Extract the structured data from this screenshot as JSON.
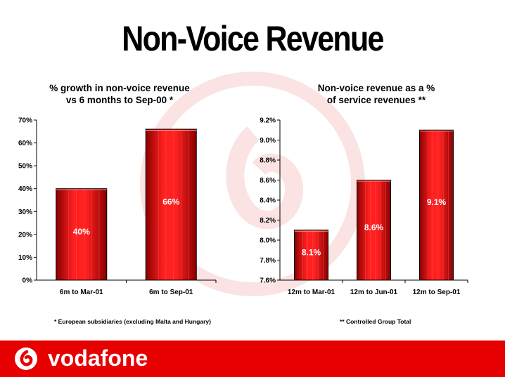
{
  "page": {
    "title": "Non-Voice Revenue",
    "brand": "vodafone",
    "colors": {
      "accent": "#e60000",
      "bar_dark": "#8a0000",
      "bar_light": "#ff2020"
    }
  },
  "chart_data": [
    {
      "type": "bar",
      "title_lines": [
        "% growth in non-voice revenue",
        "vs 6 months to Sep-00 *"
      ],
      "categories": [
        "6m to Mar-01",
        "6m to Sep-01"
      ],
      "values": [
        40,
        66
      ],
      "data_labels": [
        "40%",
        "66%"
      ],
      "ylim": [
        0,
        70
      ],
      "yticks": [
        "0%",
        "10%",
        "20%",
        "30%",
        "40%",
        "50%",
        "60%",
        "70%"
      ],
      "footnote": "* European subsidiaries (excluding Malta and Hungary)"
    },
    {
      "type": "bar",
      "title_lines": [
        "Non-voice revenue as a %",
        "of service revenues **"
      ],
      "categories": [
        "12m to Mar-01",
        "12m to Jun-01",
        "12m to Sep-01"
      ],
      "values": [
        8.1,
        8.6,
        9.1
      ],
      "data_labels": [
        "8.1%",
        "8.6%",
        "9.1%"
      ],
      "ylim": [
        7.6,
        9.2
      ],
      "yticks": [
        "7.6%",
        "7.8%",
        "8.0%",
        "8.2%",
        "8.4%",
        "8.6%",
        "8.8%",
        "9.0%",
        "9.2%"
      ],
      "footnote": "** Controlled Group Total"
    }
  ]
}
